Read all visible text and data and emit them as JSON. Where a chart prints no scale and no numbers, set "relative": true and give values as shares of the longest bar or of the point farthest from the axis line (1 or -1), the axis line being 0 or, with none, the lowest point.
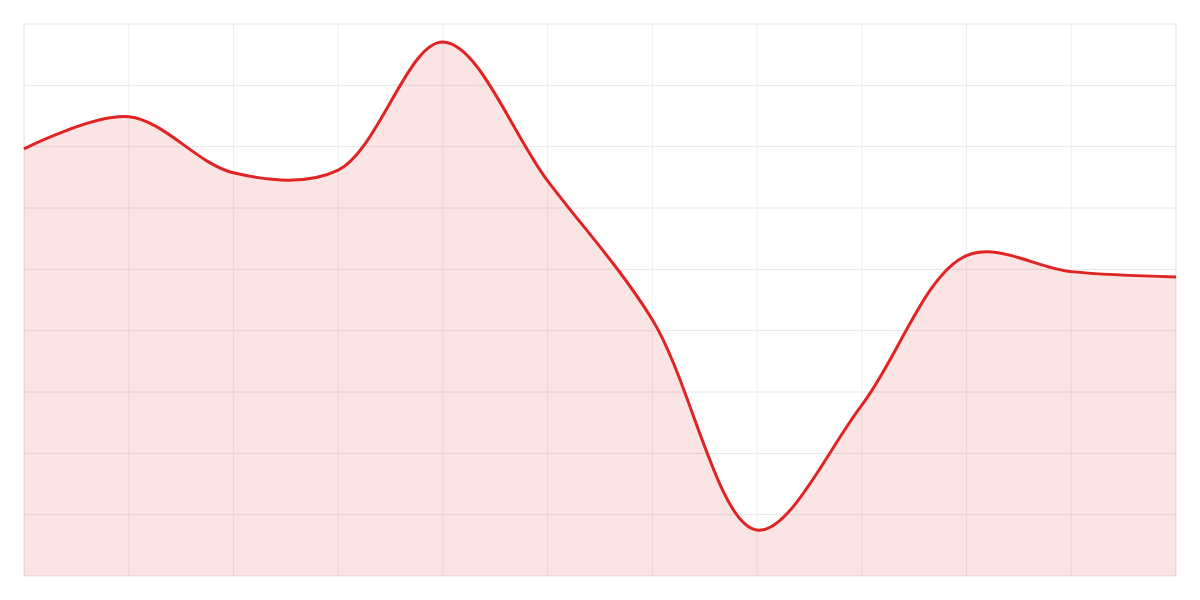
{
  "chart_data": {
    "type": "area",
    "relative": true,
    "categories": [
      null,
      null,
      null,
      null,
      null,
      null,
      null,
      null,
      null,
      null,
      null,
      null
    ],
    "series": [
      {
        "color": "#e02424",
        "values": [
          0.8,
          0.86,
          0.755,
          0.76,
          1,
          0.74,
          0.48,
          0.086,
          0.32,
          0.6,
          0.57,
          0.56
        ]
      }
    ],
    "grid": true
  }
}
